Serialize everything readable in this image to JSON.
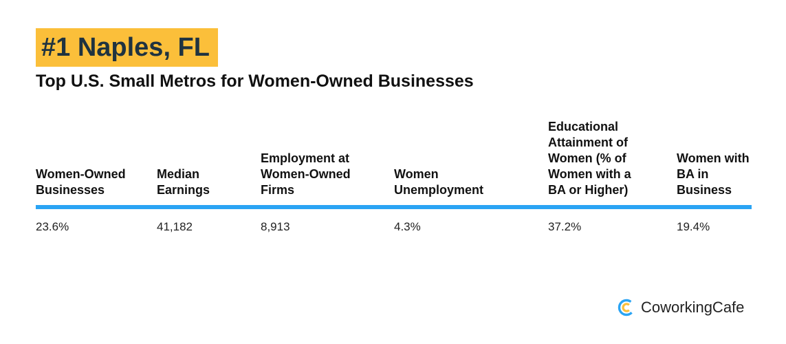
{
  "header": {
    "rank_title": "#1 Naples, FL",
    "subtitle": "Top U.S. Small Metros for Women-Owned Businesses"
  },
  "colors": {
    "badge_bg": "#fbbf3a",
    "badge_text": "#1f3340",
    "rule": "#2aa4f4",
    "logo_blue": "#2aa4f4",
    "logo_yellow": "#fbbf3a"
  },
  "chart_data": {
    "type": "table",
    "title": "#1 Naples, FL",
    "subtitle": "Top U.S. Small Metros for Women-Owned Businesses",
    "columns": [
      "Women-Owned Businesses",
      "Median Earnings",
      "Employment at Women-Owned Firms",
      "Women Unemployment",
      "Educational Attainment of Women (% of Women with a BA or Higher)",
      "Women with BA in Business"
    ],
    "rows": [
      [
        "23.6%",
        "41,182",
        "8,913",
        "4.3%",
        "37.2%",
        "19.4%"
      ]
    ]
  },
  "brand": {
    "name": "CoworkingCafe",
    "icon": "coworkingcafe-logo-icon"
  }
}
